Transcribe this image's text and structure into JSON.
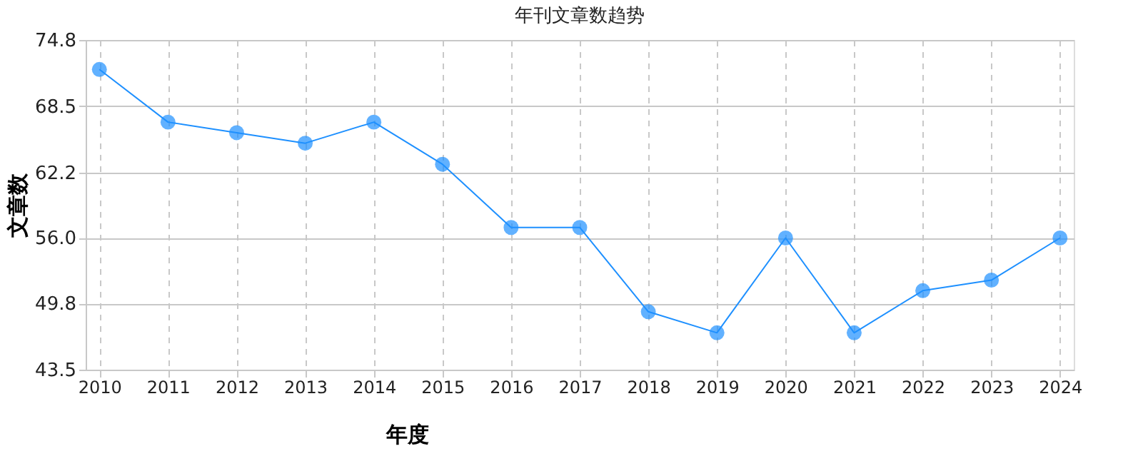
{
  "chart_data": {
    "type": "line",
    "title": "年刊文章数趋势",
    "xlabel": "年度",
    "ylabel": "文章数",
    "categories": [
      "2010",
      "2011",
      "2012",
      "2013",
      "2014",
      "2015",
      "2016",
      "2017",
      "2018",
      "2019",
      "2020",
      "2021",
      "2022",
      "2023",
      "2024"
    ],
    "series": [
      {
        "color": "#1e90ff",
        "values": [
          72,
          67,
          66,
          65,
          67,
          63,
          57,
          57,
          49,
          47,
          56,
          47,
          51,
          52,
          56
        ]
      }
    ],
    "ylim": [
      43.5,
      74.8
    ],
    "yticks": [
      43.5,
      49.8,
      {
        "value": 56.0,
        "label": "56.0"
      },
      62.2,
      68.5,
      74.8
    ],
    "grid": true,
    "marker": "circle",
    "line_style": "solid",
    "legend": false
  }
}
